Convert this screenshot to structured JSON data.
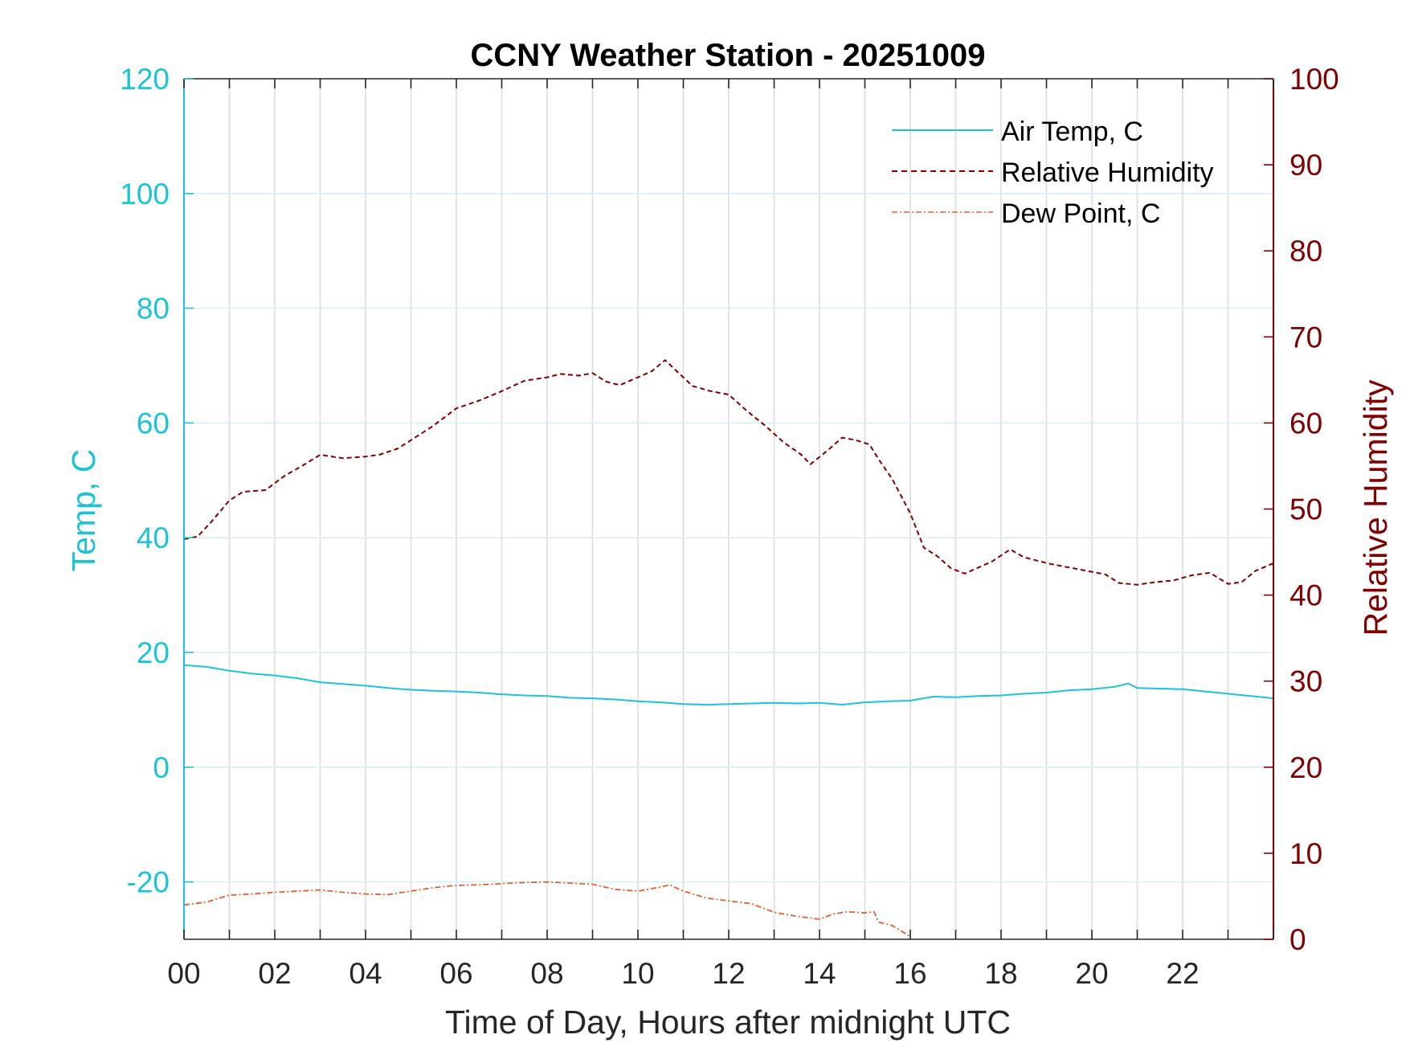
{
  "chart_data": {
    "type": "line",
    "title": "CCNY Weather Station - 20251009",
    "xlabel": "Time of Day, Hours after midnight UTC",
    "ylabel_left": "Temp, C",
    "ylabel_right": "Relative Humidity",
    "xlim": [
      0,
      24
    ],
    "ylim_left": [
      -30,
      120
    ],
    "ylim_right": [
      0,
      100
    ],
    "x_ticks": [
      0,
      2,
      4,
      6,
      8,
      10,
      12,
      14,
      16,
      18,
      20,
      22
    ],
    "x_tick_labels": [
      "00",
      "02",
      "04",
      "06",
      "08",
      "10",
      "12",
      "14",
      "16",
      "18",
      "20",
      "22"
    ],
    "y_left_ticks": [
      "120",
      "100",
      "80",
      "60",
      "40",
      "20",
      "0",
      "-20"
    ],
    "y_right_ticks": [
      "100",
      "90",
      "80",
      "70",
      "60",
      "50",
      "40",
      "30",
      "20",
      "10",
      "0"
    ],
    "grid": "on",
    "legend_position": "top-right",
    "colors": {
      "temp": "#1cc3d6",
      "rh": "#800000",
      "dew": "#e0602a"
    },
    "series": [
      {
        "name": "Air Temp, C",
        "axis": "left",
        "style": "solid",
        "x": [
          0,
          0.5,
          1,
          1.5,
          2,
          2.5,
          3,
          3.5,
          4,
          4.5,
          5,
          5.5,
          6,
          6.5,
          7,
          7.5,
          8,
          8.5,
          9,
          9.5,
          10,
          10.5,
          11,
          11.5,
          12,
          12.5,
          13,
          13.5,
          14,
          14.5,
          15,
          15.5,
          16,
          16.5,
          17,
          17.5,
          18,
          18.5,
          19,
          19.5,
          20,
          20.5,
          20.8,
          21,
          21.5,
          22,
          22.5,
          23,
          23.5,
          24
        ],
        "values": [
          17.8,
          17.5,
          16.8,
          16.3,
          16.0,
          15.5,
          14.8,
          14.5,
          14.2,
          13.8,
          13.5,
          13.3,
          13.2,
          13.0,
          12.7,
          12.5,
          12.4,
          12.1,
          12.0,
          11.8,
          11.5,
          11.3,
          11.0,
          10.9,
          11.0,
          11.1,
          11.2,
          11.1,
          11.2,
          10.9,
          11.3,
          11.5,
          11.6,
          12.3,
          12.2,
          12.4,
          12.5,
          12.8,
          13.0,
          13.4,
          13.6,
          14.0,
          14.6,
          13.8,
          13.7,
          13.6,
          13.2,
          12.8,
          12.4,
          12.0
        ]
      },
      {
        "name": "Relative Humidity",
        "axis": "right",
        "style": "dashed",
        "x": [
          0,
          0.3,
          0.6,
          1,
          1.3,
          1.8,
          2.2,
          2.6,
          3,
          3.5,
          4,
          4.3,
          4.7,
          5,
          5.5,
          6,
          6.5,
          7,
          7.5,
          8,
          8.3,
          8.7,
          9,
          9.3,
          9.6,
          10,
          10.3,
          10.6,
          10.9,
          11.2,
          11.6,
          12,
          12.4,
          12.8,
          13.2,
          13.6,
          13.8,
          14.2,
          14.5,
          14.8,
          15.1,
          15.3,
          15.6,
          15.8,
          16,
          16.3,
          16.6,
          16.9,
          17.2,
          17.5,
          17.8,
          18.2,
          18.5,
          18.8,
          19.1,
          19.5,
          19.9,
          20.3,
          20.6,
          21,
          21.4,
          21.8,
          22.2,
          22.6,
          23,
          23.3,
          23.6,
          24
        ],
        "values": [
          46.5,
          46.8,
          48.5,
          51.0,
          52.0,
          52.2,
          53.8,
          55.0,
          56.3,
          55.9,
          56.1,
          56.3,
          57.0,
          58.0,
          59.7,
          61.7,
          62.6,
          63.7,
          64.9,
          65.3,
          65.7,
          65.5,
          65.8,
          64.8,
          64.4,
          65.3,
          66.0,
          67.3,
          65.8,
          64.3,
          63.7,
          63.3,
          61.4,
          59.7,
          57.8,
          56.3,
          55.2,
          56.9,
          58.3,
          58.0,
          57.5,
          55.8,
          53.5,
          51.5,
          49.5,
          45.5,
          44.5,
          43.1,
          42.5,
          43.2,
          43.9,
          45.3,
          44.4,
          44.0,
          43.6,
          43.2,
          42.8,
          42.4,
          41.4,
          41.2,
          41.5,
          41.7,
          42.3,
          42.6,
          41.3,
          41.5,
          42.8,
          43.7
        ]
      },
      {
        "name": "Dew Point, C",
        "axis": "left",
        "style": "dashdot",
        "x": [
          0,
          0.5,
          1,
          1.5,
          2,
          2.5,
          3,
          3.5,
          4,
          4.5,
          5,
          5.5,
          6,
          6.5,
          7,
          7.5,
          8,
          8.5,
          9,
          9.5,
          10,
          10.5,
          10.7,
          11,
          11.5,
          12,
          12.5,
          13,
          13.5,
          14,
          14.3,
          14.6,
          15,
          15.2,
          15.3,
          15.6,
          16.0
        ],
        "values": [
          -24.0,
          -23.5,
          -22.3,
          -22.1,
          -21.8,
          -21.6,
          -21.4,
          -21.8,
          -22.1,
          -22.2,
          -21.6,
          -21.0,
          -20.6,
          -20.5,
          -20.3,
          -20.1,
          -20.0,
          -20.2,
          -20.4,
          -21.3,
          -21.6,
          -20.9,
          -20.5,
          -21.6,
          -22.8,
          -23.3,
          -23.8,
          -25.3,
          -26.0,
          -26.5,
          -25.6,
          -25.2,
          -25.4,
          -25.2,
          -27.0,
          -27.6,
          -29.5
        ]
      }
    ]
  }
}
